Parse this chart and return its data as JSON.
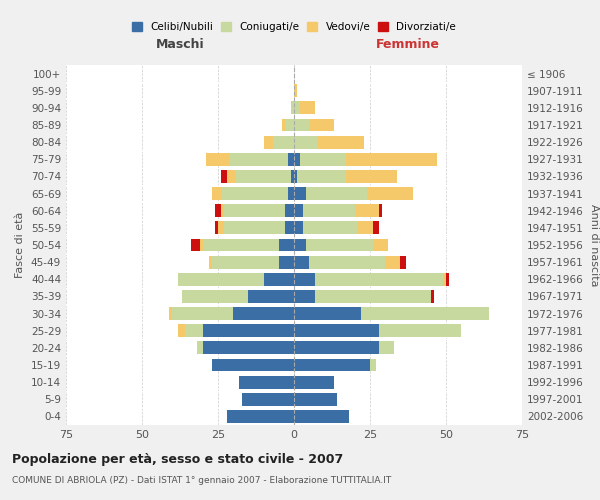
{
  "age_groups": [
    "0-4",
    "5-9",
    "10-14",
    "15-19",
    "20-24",
    "25-29",
    "30-34",
    "35-39",
    "40-44",
    "45-49",
    "50-54",
    "55-59",
    "60-64",
    "65-69",
    "70-74",
    "75-79",
    "80-84",
    "85-89",
    "90-94",
    "95-99",
    "100+"
  ],
  "birth_years": [
    "2002-2006",
    "1997-2001",
    "1992-1996",
    "1987-1991",
    "1982-1986",
    "1977-1981",
    "1972-1976",
    "1967-1971",
    "1962-1966",
    "1957-1961",
    "1952-1956",
    "1947-1951",
    "1942-1946",
    "1937-1941",
    "1932-1936",
    "1927-1931",
    "1922-1926",
    "1917-1921",
    "1912-1916",
    "1907-1911",
    "≤ 1906"
  ],
  "male": {
    "celibi": [
      22,
      17,
      18,
      27,
      30,
      30,
      20,
      15,
      10,
      5,
      5,
      3,
      3,
      2,
      1,
      2,
      0,
      0,
      0,
      0,
      0
    ],
    "coniugati": [
      0,
      0,
      0,
      0,
      2,
      6,
      20,
      22,
      28,
      22,
      25,
      20,
      20,
      22,
      18,
      19,
      7,
      3,
      1,
      0,
      0
    ],
    "vedovi": [
      0,
      0,
      0,
      0,
      0,
      2,
      1,
      0,
      0,
      1,
      1,
      2,
      1,
      3,
      3,
      8,
      3,
      1,
      0,
      0,
      0
    ],
    "divorziati": [
      0,
      0,
      0,
      0,
      0,
      0,
      0,
      0,
      0,
      0,
      3,
      1,
      2,
      0,
      2,
      0,
      0,
      0,
      0,
      0,
      0
    ]
  },
  "female": {
    "nubili": [
      18,
      14,
      13,
      25,
      28,
      28,
      22,
      7,
      7,
      5,
      4,
      3,
      3,
      4,
      1,
      2,
      0,
      0,
      0,
      0,
      0
    ],
    "coniugate": [
      0,
      0,
      0,
      2,
      5,
      27,
      42,
      38,
      42,
      25,
      22,
      18,
      17,
      20,
      16,
      15,
      8,
      5,
      2,
      0,
      0
    ],
    "vedove": [
      0,
      0,
      0,
      0,
      0,
      0,
      0,
      0,
      1,
      5,
      5,
      5,
      8,
      15,
      17,
      30,
      15,
      8,
      5,
      1,
      0
    ],
    "divorziate": [
      0,
      0,
      0,
      0,
      0,
      0,
      0,
      1,
      1,
      2,
      0,
      2,
      1,
      0,
      0,
      0,
      0,
      0,
      0,
      0,
      0
    ]
  },
  "colors": {
    "celibi": "#3A6EA5",
    "coniugati": "#C8D9A0",
    "vedovi": "#F5C96A",
    "divorziati": "#CC1010"
  },
  "xlim": 75,
  "title": "Popolazione per età, sesso e stato civile - 2007",
  "subtitle": "COMUNE DI ABRIOLA (PZ) - Dati ISTAT 1° gennaio 2007 - Elaborazione TUTTITALIA.IT",
  "ylabel_left": "Fasce di età",
  "ylabel_right": "Anni di nascita",
  "xlabel_left": "Maschi",
  "xlabel_right": "Femmine",
  "legend_labels": [
    "Celibi/Nubili",
    "Coniugati/e",
    "Vedovi/e",
    "Divorziati/e"
  ],
  "bg_color": "#f0f0f0",
  "plot_bg": "#ffffff"
}
